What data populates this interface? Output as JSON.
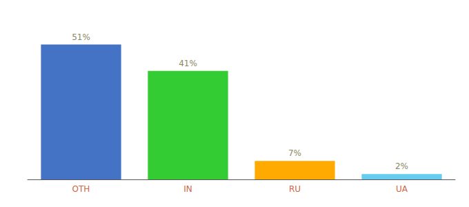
{
  "chart_data": {
    "type": "bar",
    "categories": [
      "OTH",
      "IN",
      "RU",
      "UA"
    ],
    "values": [
      51,
      41,
      7,
      2
    ],
    "value_labels": [
      "51%",
      "41%",
      "7%",
      "2%"
    ],
    "colors": [
      "#4472c4",
      "#33cc33",
      "#ffaa00",
      "#66ccee"
    ],
    "ylim": [
      0,
      60
    ],
    "grid": false,
    "data_labels": true,
    "tick_labels": "x"
  }
}
